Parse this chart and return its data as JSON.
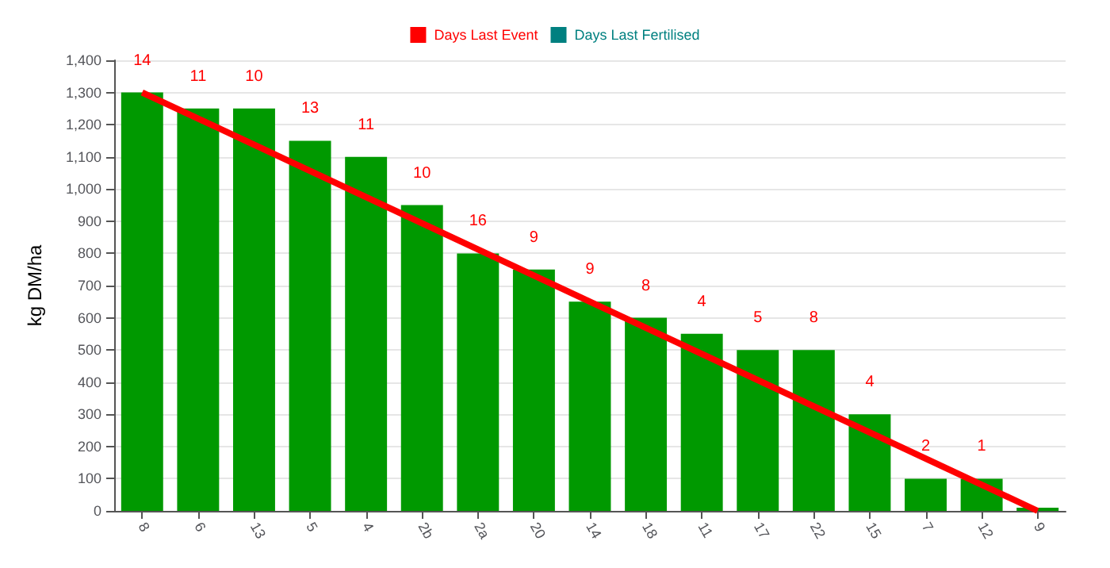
{
  "chart_data": {
    "type": "bar",
    "ylabel": "kg DM/ha",
    "categories": [
      "8",
      "6",
      "13",
      "5",
      "4",
      "2b",
      "2a",
      "20",
      "14",
      "18",
      "11",
      "17",
      "22",
      "15",
      "7",
      "12",
      "9"
    ],
    "series": [
      {
        "color": "#009900",
        "values": [
          1300,
          1250,
          1250,
          1150,
          1100,
          950,
          800,
          750,
          650,
          600,
          550,
          500,
          500,
          300,
          100,
          100,
          10
        ]
      },
      {
        "type": "line",
        "name": "Days Last Event",
        "color": "#ff0000",
        "x": [
          "8",
          "9"
        ],
        "values": [
          1300,
          0
        ]
      },
      {
        "type": "bar",
        "name": "Days Last Fertilised",
        "color": "#008080",
        "values": [
          null,
          null,
          null,
          null,
          null,
          null,
          null,
          null,
          null,
          null,
          null,
          null,
          null,
          null,
          null,
          null,
          null
        ]
      }
    ],
    "ylim": [
      0,
      1400
    ],
    "yticks": [
      0,
      100,
      200,
      300,
      400,
      500,
      600,
      700,
      800,
      900,
      {
        "value": 1000,
        "label": "1,000"
      },
      {
        "value": 1100,
        "label": "1,100"
      },
      {
        "value": 1200,
        "label": "1,200"
      },
      {
        "value": 1300,
        "label": "1,300"
      },
      {
        "value": 1400,
        "label": "1,400"
      }
    ],
    "annotations": [
      "14",
      "11",
      "10",
      "13",
      "11",
      "10",
      "16",
      "9",
      "9",
      "8",
      "4",
      "5",
      "8",
      "4",
      "2",
      "1"
    ],
    "grid": "y",
    "legend": "top",
    "marker": "none",
    "line_style": "solid"
  }
}
